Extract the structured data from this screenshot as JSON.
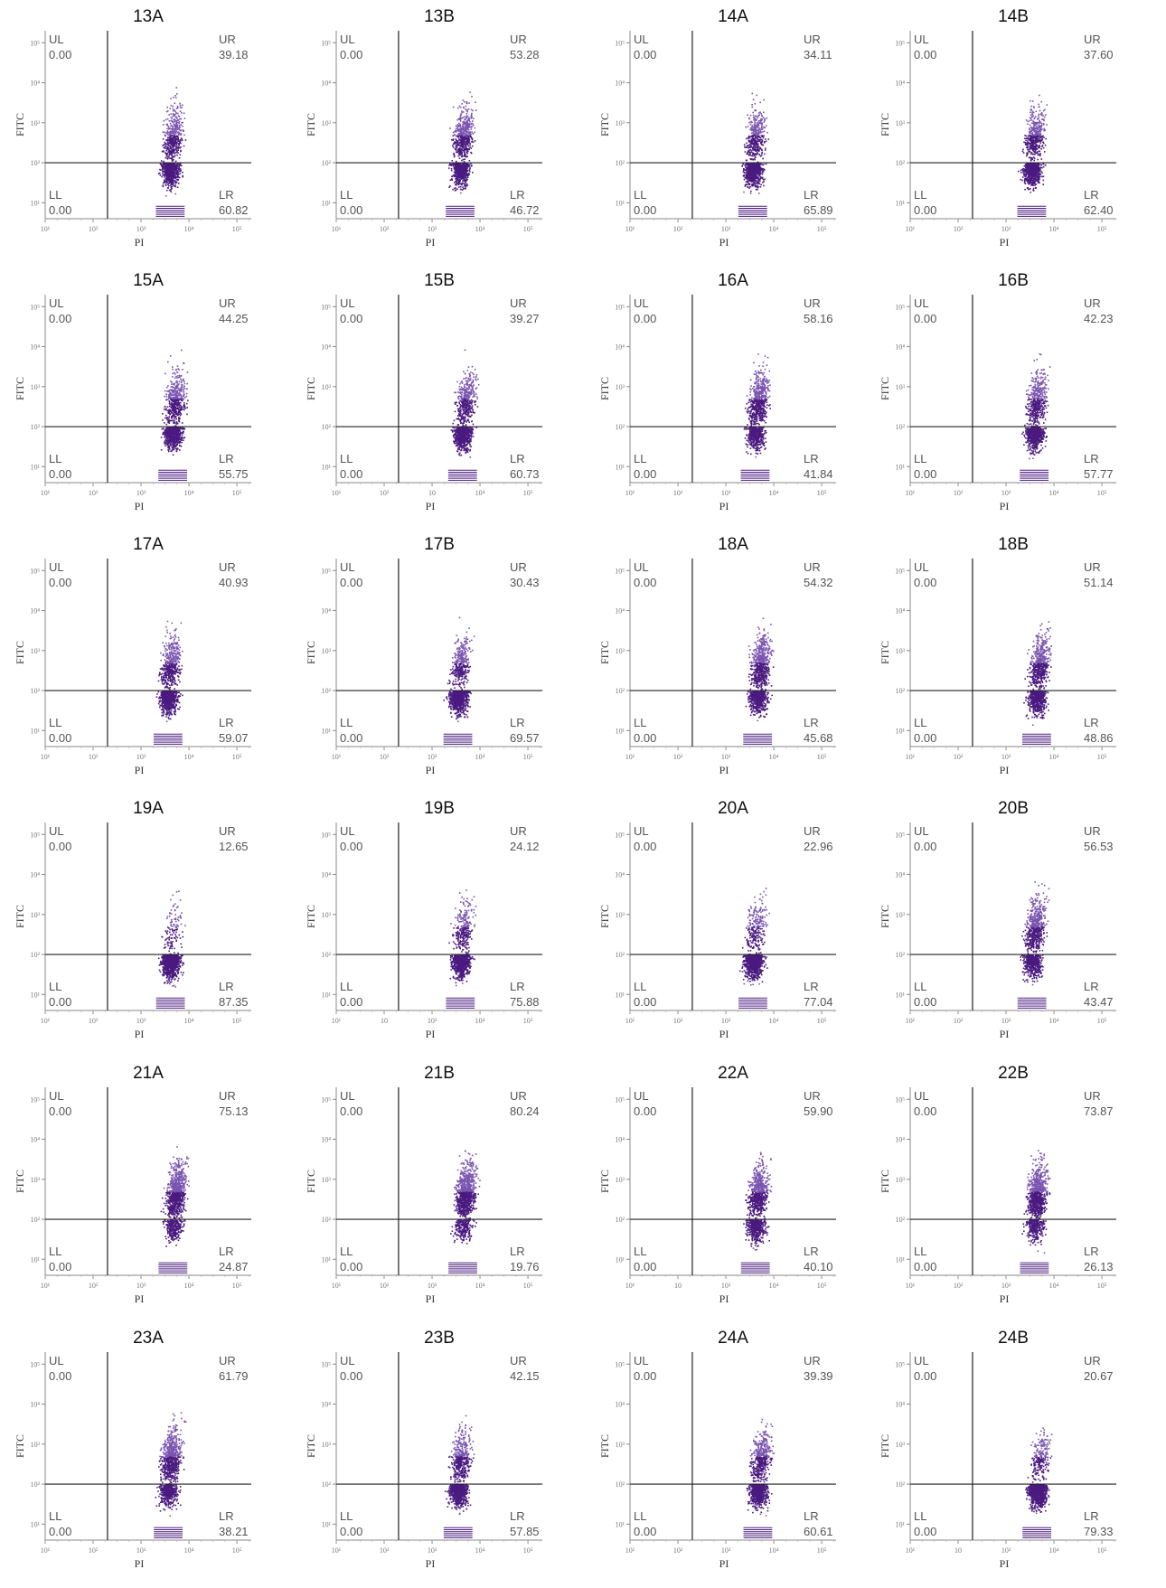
{
  "colors": {
    "dots": "#4a1a80",
    "dots_light": "#7a55b0",
    "axis": "#333333",
    "text": "#555555"
  },
  "chart_data": [
    {
      "type": "scatter",
      "title": "13A",
      "xlabel": "PI",
      "ylabel": "FITC",
      "quadrants": {
        "ul": "0.00",
        "ur": "39.18",
        "ll": "0.00",
        "lr": "60.82"
      },
      "xticks": [
        "10¹",
        "10²",
        "10³",
        "10⁴",
        "10⁵"
      ],
      "yticks": [
        "10⁵",
        "10⁴",
        "10³",
        "10²",
        "10¹"
      ],
      "xlim": [
        1,
        5.3
      ],
      "ylim": [
        0.6,
        5.3
      ],
      "gate": {
        "x": 2.3,
        "y": 2.0
      }
    },
    {
      "type": "scatter",
      "title": "13B",
      "xlabel": "PI",
      "ylabel": "FITC",
      "quadrants": {
        "ul": "0.00",
        "ur": "53.28",
        "ll": "0.00",
        "lr": "46.72"
      },
      "xticks": [
        "10¹",
        "10²",
        "10³",
        "10⁴",
        "10⁵"
      ],
      "yticks": [
        "10⁵",
        "10⁴",
        "10³",
        "10²",
        "10¹"
      ],
      "xlim": [
        1,
        5.3
      ],
      "ylim": [
        0.6,
        5.3
      ],
      "gate": {
        "x": 2.3,
        "y": 2.0
      }
    },
    {
      "type": "scatter",
      "title": "14A",
      "xlabel": "PI",
      "ylabel": "FITC",
      "quadrants": {
        "ul": "0.00",
        "ur": "34.11",
        "ll": "0.00",
        "lr": "65.89"
      },
      "xticks": [
        "10¹",
        "10²",
        "10³",
        "10⁴",
        "10⁵"
      ],
      "yticks": [
        "10⁵",
        "10⁴",
        "10³",
        "10²",
        "10¹"
      ],
      "xlim": [
        1,
        5.3
      ],
      "ylim": [
        0.6,
        5.3
      ],
      "gate": {
        "x": 2.3,
        "y": 2.0
      }
    },
    {
      "type": "scatter",
      "title": "14B",
      "xlabel": "PI",
      "ylabel": "FITC",
      "quadrants": {
        "ul": "0.00",
        "ur": "37.60",
        "ll": "0.00",
        "lr": "62.40"
      },
      "xticks": [
        "10¹",
        "10²",
        "10³",
        "10⁴",
        "10⁵"
      ],
      "yticks": [
        "10⁵",
        "10⁴",
        "10³",
        "10²",
        "10¹"
      ],
      "xlim": [
        1,
        5.3
      ],
      "ylim": [
        0.6,
        5.3
      ],
      "gate": {
        "x": 2.3,
        "y": 2.0
      }
    },
    {
      "type": "scatter",
      "title": "15A",
      "xlabel": "PI",
      "ylabel": "FITC",
      "quadrants": {
        "ul": "0.00",
        "ur": "44.25",
        "ll": "0.00",
        "lr": "55.75"
      },
      "xticks": [
        "10¹",
        "10²",
        "10³",
        "10⁴",
        "10⁵"
      ],
      "yticks": [
        "10⁵",
        "10⁴",
        "10³",
        "10²",
        "10¹"
      ],
      "xlim": [
        1,
        5.3
      ],
      "ylim": [
        0.6,
        5.3
      ],
      "gate": {
        "x": 2.3,
        "y": 2.0
      }
    },
    {
      "type": "scatter",
      "title": "15B",
      "xlabel": "PI",
      "ylabel": "FITC",
      "quadrants": {
        "ul": "0.00",
        "ur": "39.27",
        "ll": "0.00",
        "lr": "60.73"
      },
      "xticks": [
        "10¹",
        "10²",
        "10",
        "10⁴",
        "10⁵"
      ],
      "yticks": [
        "10⁵",
        "10⁴",
        "10³",
        "10²",
        "10¹"
      ],
      "xlim": [
        1,
        5.3
      ],
      "ylim": [
        0.6,
        5.3
      ],
      "gate": {
        "x": 2.3,
        "y": 2.0
      }
    },
    {
      "type": "scatter",
      "title": "16A",
      "xlabel": "PI",
      "ylabel": "FITC",
      "quadrants": {
        "ul": "0.00",
        "ur": "58.16",
        "ll": "0.00",
        "lr": "41.84"
      },
      "xticks": [
        "10¹",
        "10²",
        "10³",
        "10⁴",
        "10⁵"
      ],
      "yticks": [
        "10⁵",
        "10⁴",
        "10³",
        "10²",
        "10¹"
      ],
      "xlim": [
        1,
        5.3
      ],
      "ylim": [
        0.6,
        5.3
      ],
      "gate": {
        "x": 2.3,
        "y": 2.0
      }
    },
    {
      "type": "scatter",
      "title": "16B",
      "xlabel": "PI",
      "ylabel": "FITC",
      "quadrants": {
        "ul": "0.00",
        "ur": "42.23",
        "ll": "0.00",
        "lr": "57.77"
      },
      "xticks": [
        "10¹",
        "10²",
        "10³",
        "10⁴",
        "10⁵"
      ],
      "yticks": [
        "10⁵",
        "10⁴",
        "10³",
        "10²",
        "10¹"
      ],
      "xlim": [
        1,
        5.3
      ],
      "ylim": [
        0.6,
        5.3
      ],
      "gate": {
        "x": 2.3,
        "y": 2.0
      }
    },
    {
      "type": "scatter",
      "title": "17A",
      "xlabel": "PI",
      "ylabel": "FITC",
      "quadrants": {
        "ul": "0.00",
        "ur": "40.93",
        "ll": "0.00",
        "lr": "59.07"
      },
      "xticks": [
        "10¹",
        "10²",
        "10³",
        "10⁴",
        "10⁵"
      ],
      "yticks": [
        "10⁵",
        "10⁴",
        "10³",
        "10²",
        "10¹"
      ],
      "xlim": [
        1,
        5.3
      ],
      "ylim": [
        0.6,
        5.3
      ],
      "gate": {
        "x": 2.3,
        "y": 2.0
      }
    },
    {
      "type": "scatter",
      "title": "17B",
      "xlabel": "PI",
      "ylabel": "FITC",
      "quadrants": {
        "ul": "0.00",
        "ur": "30.43",
        "ll": "0.00",
        "lr": "69.57"
      },
      "xticks": [
        "10¹",
        "10²",
        "10³",
        "10⁴",
        "10⁵"
      ],
      "yticks": [
        "10⁵",
        "10⁴",
        "10³",
        "10²",
        "10¹"
      ],
      "xlim": [
        1,
        5.3
      ],
      "ylim": [
        0.6,
        5.3
      ],
      "gate": {
        "x": 2.3,
        "y": 2.0
      }
    },
    {
      "type": "scatter",
      "title": "18A",
      "xlabel": "PI",
      "ylabel": "FITC",
      "quadrants": {
        "ul": "0.00",
        "ur": "54.32",
        "ll": "0.00",
        "lr": "45.68"
      },
      "xticks": [
        "10¹",
        "10²",
        "10³",
        "10⁴",
        "10⁵"
      ],
      "yticks": [
        "10⁵",
        "10⁴",
        "10³",
        "10²",
        "10¹"
      ],
      "xlim": [
        1,
        5.3
      ],
      "ylim": [
        0.6,
        5.3
      ],
      "gate": {
        "x": 2.3,
        "y": 2.0
      }
    },
    {
      "type": "scatter",
      "title": "18B",
      "xlabel": "PI",
      "ylabel": "FITC",
      "quadrants": {
        "ul": "0.00",
        "ur": "51.14",
        "ll": "0.00",
        "lr": "48.86"
      },
      "xticks": [
        "10¹",
        "10²",
        "10³",
        "10⁴",
        "10⁵"
      ],
      "yticks": [
        "10⁵",
        "10⁴",
        "10³",
        "10²",
        "10¹"
      ],
      "xlim": [
        1,
        5.3
      ],
      "ylim": [
        0.6,
        5.3
      ],
      "gate": {
        "x": 2.3,
        "y": 2.0
      }
    },
    {
      "type": "scatter",
      "title": "19A",
      "xlabel": "PI",
      "ylabel": "FITC",
      "quadrants": {
        "ul": "0.00",
        "ur": "12.65",
        "ll": "0.00",
        "lr": "87.35"
      },
      "xticks": [
        "10¹",
        "10²",
        "10³",
        "10⁴",
        "10⁵"
      ],
      "yticks": [
        "10⁵",
        "10⁴",
        "10³",
        "10²",
        "10¹"
      ],
      "xlim": [
        1,
        5.3
      ],
      "ylim": [
        0.6,
        5.3
      ],
      "gate": {
        "x": 2.3,
        "y": 2.0
      }
    },
    {
      "type": "scatter",
      "title": "19B",
      "xlabel": "PI",
      "ylabel": "FITC",
      "quadrants": {
        "ul": "0.00",
        "ur": "24.12",
        "ll": "0.00",
        "lr": "75.88"
      },
      "xticks": [
        "10¹",
        "10",
        "10³",
        "10⁴",
        "10⁵"
      ],
      "yticks": [
        "10⁵",
        "10⁴",
        "10³",
        "10²",
        "10¹"
      ],
      "xlim": [
        1,
        5.3
      ],
      "ylim": [
        0.6,
        5.3
      ],
      "gate": {
        "x": 2.3,
        "y": 2.0
      }
    },
    {
      "type": "scatter",
      "title": "20A",
      "xlabel": "PI",
      "ylabel": "FITC",
      "quadrants": {
        "ul": "0.00",
        "ur": "22.96",
        "ll": "0.00",
        "lr": "77.04"
      },
      "xticks": [
        "10¹",
        "10²",
        "10³",
        "10⁴",
        "10⁵"
      ],
      "yticks": [
        "10⁵",
        "10⁴",
        "10³",
        "10²",
        "10¹"
      ],
      "xlim": [
        1,
        5.3
      ],
      "ylim": [
        0.6,
        5.3
      ],
      "gate": {
        "x": 2.3,
        "y": 2.0
      }
    },
    {
      "type": "scatter",
      "title": "20B",
      "xlabel": "PI",
      "ylabel": "FITC",
      "quadrants": {
        "ul": "0.00",
        "ur": "56.53",
        "ll": "0.00",
        "lr": "43.47"
      },
      "xticks": [
        "10¹",
        "10²",
        "10³",
        "10⁴",
        "10⁵"
      ],
      "yticks": [
        "10⁵",
        "10⁴",
        "10³",
        "10²",
        "10¹"
      ],
      "xlim": [
        1,
        5.3
      ],
      "ylim": [
        0.6,
        5.3
      ],
      "gate": {
        "x": 2.3,
        "y": 2.0
      }
    },
    {
      "type": "scatter",
      "title": "21A",
      "xlabel": "PI",
      "ylabel": "FITC",
      "quadrants": {
        "ul": "0.00",
        "ur": "75.13",
        "ll": "0.00",
        "lr": "24.87"
      },
      "xticks": [
        "10¹",
        "10²",
        "10³",
        "10⁴",
        "10⁵"
      ],
      "yticks": [
        "10⁵",
        "10⁴",
        "10³",
        "10²",
        "10¹"
      ],
      "xlim": [
        1,
        5.3
      ],
      "ylim": [
        0.6,
        5.3
      ],
      "gate": {
        "x": 2.3,
        "y": 2.0
      }
    },
    {
      "type": "scatter",
      "title": "21B",
      "xlabel": "PI",
      "ylabel": "FITC",
      "quadrants": {
        "ul": "0.00",
        "ur": "80.24",
        "ll": "0.00",
        "lr": "19.76"
      },
      "xticks": [
        "10¹",
        "10²",
        "10³",
        "10⁴",
        "10⁵"
      ],
      "yticks": [
        "10⁵",
        "10⁴",
        "10³",
        "10²",
        "10¹"
      ],
      "xlim": [
        1,
        5.3
      ],
      "ylim": [
        0.6,
        5.3
      ],
      "gate": {
        "x": 2.3,
        "y": 2.0
      }
    },
    {
      "type": "scatter",
      "title": "22A",
      "xlabel": "PI",
      "ylabel": "FITC",
      "quadrants": {
        "ul": "0.00",
        "ur": "59.90",
        "ll": "0.00",
        "lr": "40.10"
      },
      "xticks": [
        "10¹",
        "10",
        "10³",
        "10⁴",
        "10⁵"
      ],
      "yticks": [
        "10⁵",
        "10⁴",
        "10³",
        "10²",
        "10¹"
      ],
      "xlim": [
        1,
        5.3
      ],
      "ylim": [
        0.6,
        5.3
      ],
      "gate": {
        "x": 2.3,
        "y": 2.0
      }
    },
    {
      "type": "scatter",
      "title": "22B",
      "xlabel": "PI",
      "ylabel": "FITC",
      "quadrants": {
        "ul": "0.00",
        "ur": "73.87",
        "ll": "0.00",
        "lr": "26.13"
      },
      "xticks": [
        "10¹",
        "10²",
        "10³",
        "10⁴",
        "10⁵"
      ],
      "yticks": [
        "10⁵",
        "10⁴",
        "10³",
        "10²",
        "10¹"
      ],
      "xlim": [
        1,
        5.3
      ],
      "ylim": [
        0.6,
        5.3
      ],
      "gate": {
        "x": 2.3,
        "y": 2.0
      }
    },
    {
      "type": "scatter",
      "title": "23A",
      "xlabel": "PI",
      "ylabel": "FITC",
      "quadrants": {
        "ul": "0.00",
        "ur": "61.79",
        "ll": "0.00",
        "lr": "38.21"
      },
      "xticks": [
        "10¹",
        "10²",
        "10³",
        "10⁴",
        "10⁵"
      ],
      "yticks": [
        "10⁵",
        "10⁴",
        "10³",
        "10²",
        "10¹"
      ],
      "xlim": [
        1,
        5.3
      ],
      "ylim": [
        0.6,
        5.3
      ],
      "gate": {
        "x": 2.3,
        "y": 2.0
      }
    },
    {
      "type": "scatter",
      "title": "23B",
      "xlabel": "PI",
      "ylabel": "FITC",
      "quadrants": {
        "ul": "0.00",
        "ur": "42.15",
        "ll": "0.00",
        "lr": "57.85"
      },
      "xticks": [
        "10¹",
        "10²",
        "10³",
        "10⁴",
        "10⁵"
      ],
      "yticks": [
        "10⁵",
        "10⁴",
        "10³",
        "10²",
        "10¹"
      ],
      "xlim": [
        1,
        5.3
      ],
      "ylim": [
        0.6,
        5.3
      ],
      "gate": {
        "x": 2.3,
        "y": 2.0
      }
    },
    {
      "type": "scatter",
      "title": "24A",
      "xlabel": "PI",
      "ylabel": "FITC",
      "quadrants": {
        "ul": "0.00",
        "ur": "39.39",
        "ll": "0.00",
        "lr": "60.61"
      },
      "xticks": [
        "10¹",
        "10²",
        "10³",
        "10⁴",
        "10⁵"
      ],
      "yticks": [
        "10⁵",
        "10⁴",
        "10³",
        "10²",
        "10¹"
      ],
      "xlim": [
        1,
        5.3
      ],
      "ylim": [
        0.6,
        5.3
      ],
      "gate": {
        "x": 2.3,
        "y": 2.0
      }
    },
    {
      "type": "scatter",
      "title": "24B",
      "xlabel": "PI",
      "ylabel": "FITC",
      "quadrants": {
        "ul": "0.00",
        "ur": "20.67",
        "ll": "0.00",
        "lr": "79.33"
      },
      "xticks": [
        "10¹",
        "10",
        "10³",
        "10⁴",
        "10⁵"
      ],
      "yticks": [
        "10⁵",
        "10⁴",
        "10³",
        "10²",
        "10¹"
      ],
      "xlim": [
        1,
        5.3
      ],
      "ylim": [
        0.6,
        5.3
      ],
      "gate": {
        "x": 2.3,
        "y": 2.0
      }
    }
  ]
}
